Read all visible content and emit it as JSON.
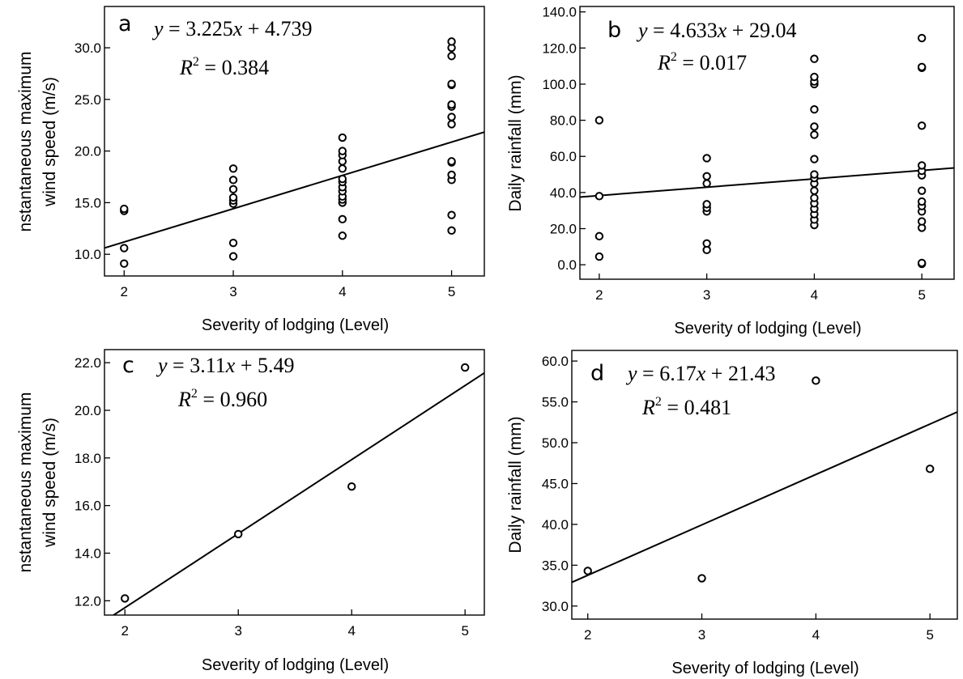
{
  "chart_data": [
    {
      "type": "scatter",
      "panel_label": "a",
      "xlabel": "Severity of lodging (Level)",
      "ylabel_lines": [
        "nstantaneous maximum",
        "wind  speed (m/s)"
      ],
      "x_ticks": [
        "2",
        "3",
        "4",
        "5"
      ],
      "y_ticks": [
        "10.0",
        "15.0",
        "20.0",
        "25.0",
        "30.0"
      ],
      "xlim": [
        1.82,
        5.3
      ],
      "ylim": [
        7.9,
        34.0
      ],
      "points": [
        [
          2,
          9.1
        ],
        [
          2,
          10.6
        ],
        [
          2,
          14.2
        ],
        [
          2,
          14.4
        ],
        [
          3,
          9.8
        ],
        [
          3,
          11.1
        ],
        [
          3,
          14.9
        ],
        [
          3,
          15.2
        ],
        [
          3,
          15.5
        ],
        [
          3,
          16.3
        ],
        [
          3,
          17.2
        ],
        [
          3,
          18.3
        ],
        [
          4,
          11.8
        ],
        [
          4,
          13.4
        ],
        [
          4,
          15.0
        ],
        [
          4,
          15.3
        ],
        [
          4,
          15.6
        ],
        [
          4,
          16.1
        ],
        [
          4,
          16.5
        ],
        [
          4,
          17.0
        ],
        [
          4,
          17.3
        ],
        [
          4,
          18.3
        ],
        [
          4,
          19.0
        ],
        [
          4,
          19.6
        ],
        [
          4,
          20.0
        ],
        [
          4,
          21.3
        ],
        [
          5,
          12.3
        ],
        [
          5,
          13.8
        ],
        [
          5,
          17.2
        ],
        [
          5,
          17.7
        ],
        [
          5,
          18.9
        ],
        [
          5,
          19.0
        ],
        [
          5,
          22.6
        ],
        [
          5,
          23.3
        ],
        [
          5,
          24.3
        ],
        [
          5,
          24.5
        ],
        [
          5,
          26.4
        ],
        [
          5,
          26.5
        ],
        [
          5,
          29.2
        ],
        [
          5,
          30.0
        ],
        [
          5,
          30.6
        ]
      ],
      "fit": {
        "slope": 3.225,
        "intercept": 4.739
      },
      "equation": {
        "lhs": "y",
        "coef": "3.225",
        "const": "4.739",
        "r2": "0.384"
      }
    },
    {
      "type": "scatter",
      "panel_label": "b",
      "xlabel": "Severity of lodging (Level)",
      "ylabel_lines": [
        "Daily rainfall (mm)"
      ],
      "x_ticks": [
        "2",
        "3",
        "4",
        "5"
      ],
      "y_ticks": [
        "0.0",
        "20.0",
        "40.0",
        "60.0",
        "80.0",
        "100.0",
        "120.0",
        "140.0"
      ],
      "xlim": [
        1.82,
        5.3
      ],
      "ylim": [
        -8.0,
        143.0
      ],
      "points": [
        [
          2,
          4.5
        ],
        [
          2,
          15.8
        ],
        [
          2,
          38.0
        ],
        [
          2,
          80.0
        ],
        [
          3,
          8.2
        ],
        [
          3,
          11.8
        ],
        [
          3,
          29.5
        ],
        [
          3,
          31.5
        ],
        [
          3,
          33.5
        ],
        [
          3,
          45.0
        ],
        [
          3,
          49.0
        ],
        [
          3,
          59.0
        ],
        [
          4,
          22.0
        ],
        [
          4,
          25.0
        ],
        [
          4,
          28.0
        ],
        [
          4,
          31.0
        ],
        [
          4,
          34.0
        ],
        [
          4,
          37.0
        ],
        [
          4,
          41.0
        ],
        [
          4,
          45.0
        ],
        [
          4,
          48.0
        ],
        [
          4,
          50.0
        ],
        [
          4,
          58.5
        ],
        [
          4,
          72.0
        ],
        [
          4,
          76.5
        ],
        [
          4,
          86.0
        ],
        [
          4,
          100.0
        ],
        [
          4,
          101.5
        ],
        [
          4,
          104.0
        ],
        [
          4,
          114.0
        ],
        [
          5,
          0.5
        ],
        [
          5,
          1.0
        ],
        [
          5,
          20.5
        ],
        [
          5,
          24.0
        ],
        [
          5,
          29.5
        ],
        [
          5,
          32.5
        ],
        [
          5,
          35.0
        ],
        [
          5,
          41.0
        ],
        [
          5,
          49.5
        ],
        [
          5,
          52.0
        ],
        [
          5,
          55.0
        ],
        [
          5,
          77.0
        ],
        [
          5,
          109.0
        ],
        [
          5,
          109.5
        ],
        [
          5,
          125.5
        ]
      ],
      "fit": {
        "slope": 4.633,
        "intercept": 29.04
      },
      "equation": {
        "lhs": "y",
        "coef": "4.633",
        "const": "29.04",
        "r2": "0.017"
      }
    },
    {
      "type": "scatter",
      "panel_label": "c",
      "xlabel": "Severity of lodging (Level)",
      "ylabel_lines": [
        "nstantaneous maximum",
        "wind  speed (m/s)"
      ],
      "x_ticks": [
        "2",
        "3",
        "4",
        "5"
      ],
      "y_ticks": [
        "12.0",
        "14.0",
        "16.0",
        "18.0",
        "20.0",
        "22.0"
      ],
      "xlim": [
        1.82,
        5.17
      ],
      "ylim": [
        11.4,
        22.55
      ],
      "points": [
        [
          2,
          12.1
        ],
        [
          3,
          14.8
        ],
        [
          4,
          16.8
        ],
        [
          5,
          21.8
        ]
      ],
      "fit": {
        "slope": 3.11,
        "intercept": 5.49
      },
      "equation": {
        "lhs": "y",
        "coef": "3.11",
        "const": "5.49",
        "r2": "0.960"
      }
    },
    {
      "type": "scatter",
      "panel_label": "d",
      "xlabel": "Severity of lodging (Level)",
      "ylabel_lines": [
        "Daily rainfall (mm)"
      ],
      "x_ticks": [
        "2",
        "3",
        "4",
        "5"
      ],
      "y_ticks": [
        "30.0",
        "35.0",
        "40.0",
        "45.0",
        "50.0",
        "55.0",
        "60.0"
      ],
      "xlim": [
        1.86,
        5.24
      ],
      "ylim": [
        28.4,
        61.3
      ],
      "points": [
        [
          2,
          34.3
        ],
        [
          3,
          33.4
        ],
        [
          4,
          57.6
        ],
        [
          5,
          46.8
        ]
      ],
      "fit": {
        "slope": 6.17,
        "intercept": 21.43
      },
      "equation": {
        "lhs": "y",
        "coef": "6.17",
        "const": "21.43",
        "r2": "0.481"
      }
    }
  ]
}
